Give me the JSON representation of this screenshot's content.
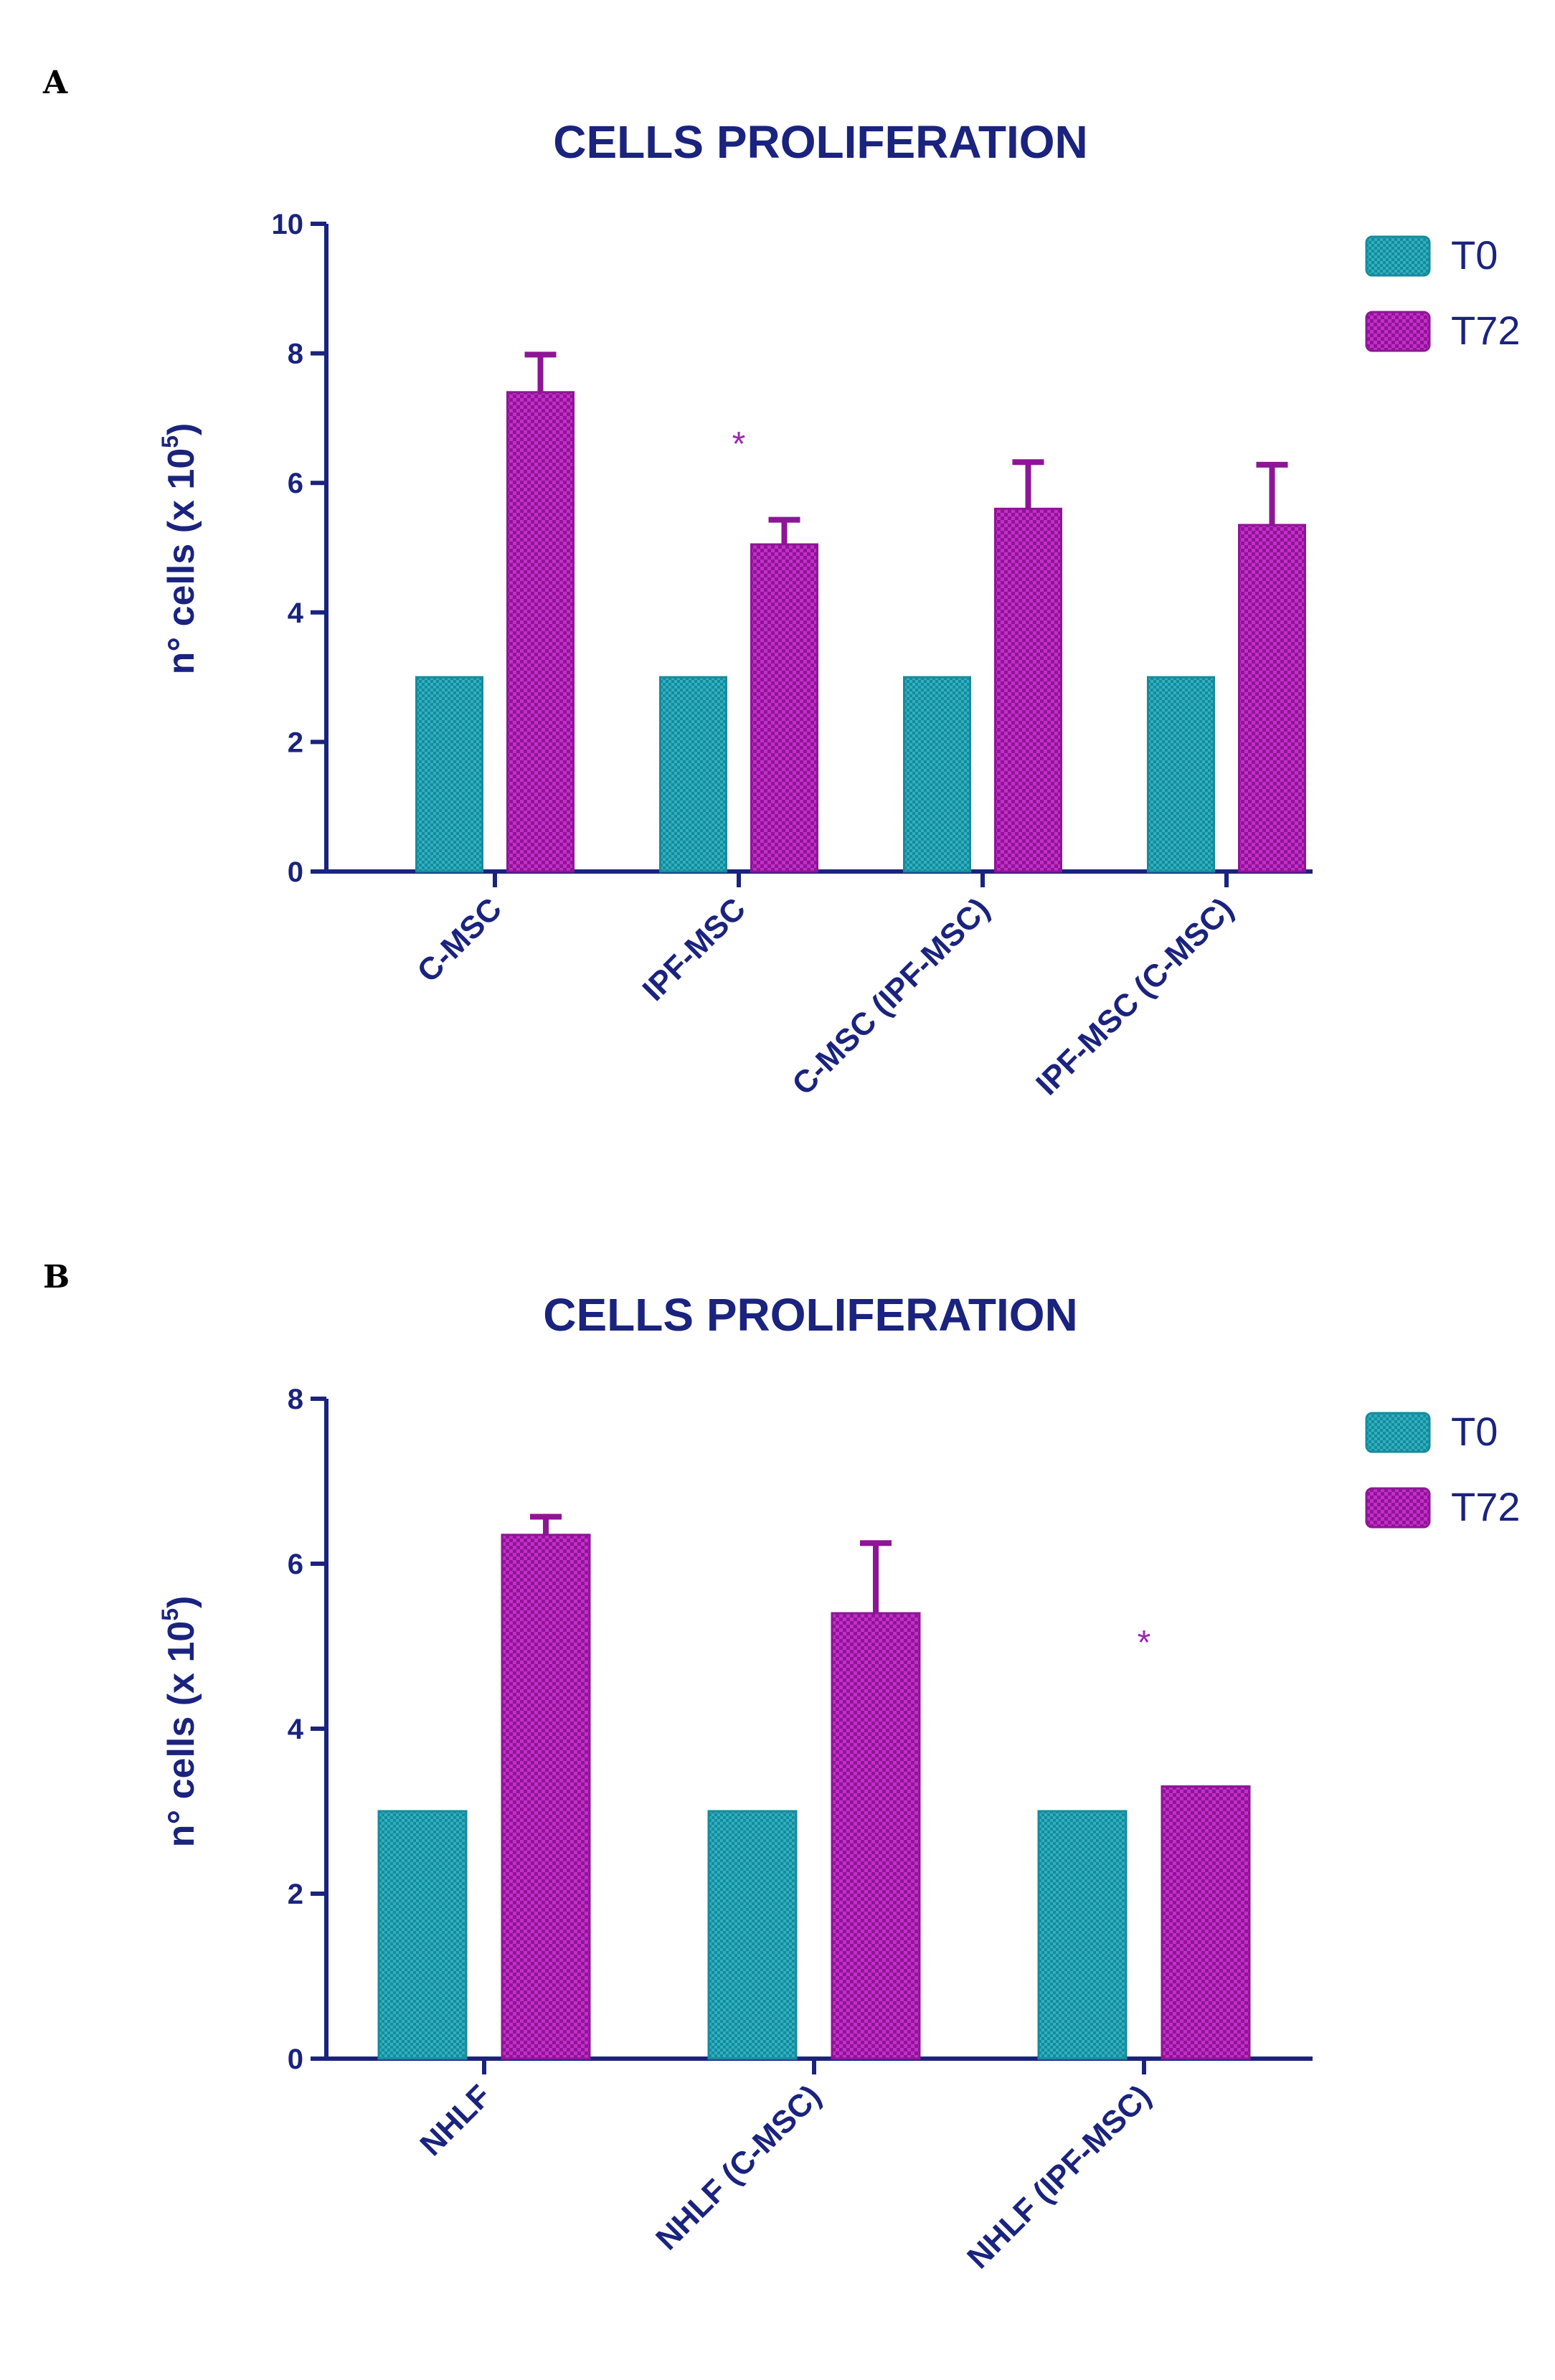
{
  "chart_data": [
    {
      "panel": "A",
      "type": "bar",
      "title": "CELLS PROLIFERATION",
      "ylabel_main": "n° cells (x 10",
      "ylabel_sup": "5",
      "ylabel_end": ")",
      "xlabel": "",
      "ylim": [
        0,
        10
      ],
      "yticks": [
        0,
        2,
        4,
        6,
        8,
        10
      ],
      "categories": [
        "C-MSC",
        "IPF-MSC",
        "C-MSC (IPF-MSC)",
        "IPF-MSC (C-MSC)"
      ],
      "series": [
        {
          "name": "T0",
          "values": [
            3,
            3,
            3,
            3
          ],
          "errors": [
            0,
            0,
            0,
            0
          ]
        },
        {
          "name": "T72",
          "values": [
            7.4,
            5.05,
            5.6,
            5.35
          ],
          "errors": [
            0.58,
            0.38,
            0.72,
            0.93
          ]
        }
      ],
      "annotations": [
        {
          "text": "*",
          "category": "IPF-MSC",
          "y": 6.8
        }
      ],
      "legend_position": "top-right"
    },
    {
      "panel": "B",
      "type": "bar",
      "title": "CELLS PROLIFERATION",
      "ylabel_main": "n° cells (x 10",
      "ylabel_sup": "5",
      "ylabel_end": ")",
      "xlabel": "",
      "ylim": [
        0,
        8
      ],
      "yticks": [
        0,
        2,
        4,
        6,
        8
      ],
      "categories": [
        "NHLF",
        "NHLF (C-MSC)",
        "NHLF (IPF-MSC)"
      ],
      "series": [
        {
          "name": "T0",
          "values": [
            3,
            3,
            3
          ],
          "errors": [
            0,
            0,
            0
          ]
        },
        {
          "name": "T72",
          "values": [
            6.35,
            5.4,
            3.3
          ],
          "errors": [
            0.22,
            0.85,
            0
          ]
        }
      ],
      "annotations": [
        {
          "text": "*",
          "category": "NHLF (IPF-MSC)",
          "y": 5.2
        }
      ],
      "legend_position": "top-right"
    }
  ],
  "colors": {
    "axis": "#1a237e",
    "t0_fill": "#168b9c",
    "t0_check": "#2fb0bf",
    "t72_fill": "#8e1596",
    "t72_check": "#c42ec9",
    "star": "#9c27b0"
  }
}
